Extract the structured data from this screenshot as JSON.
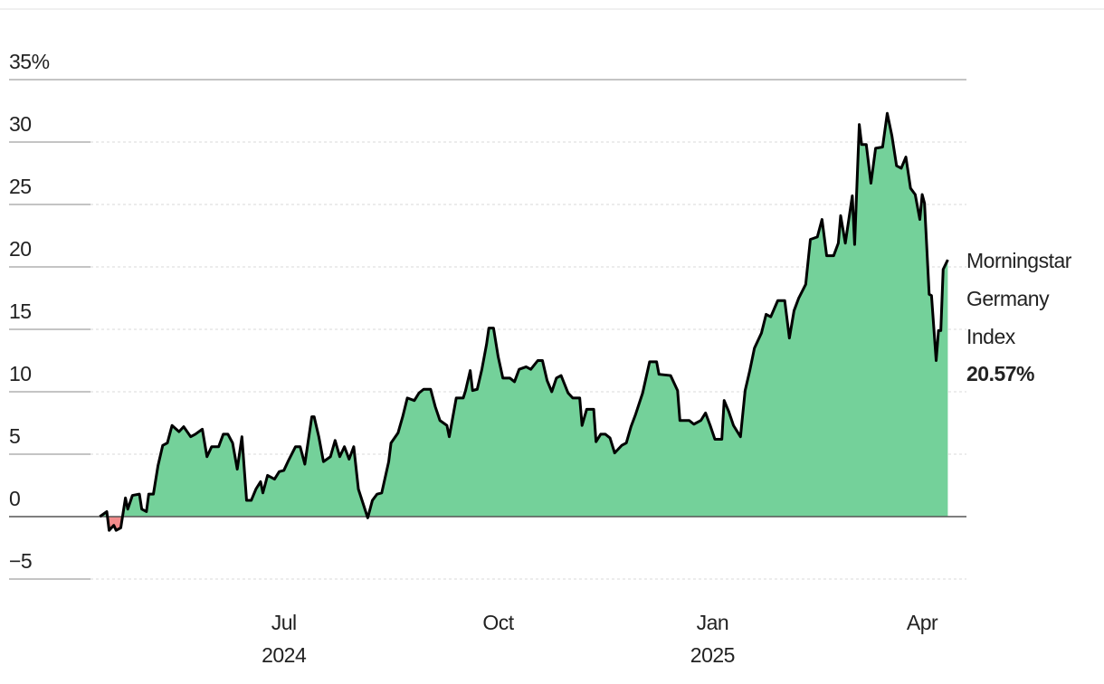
{
  "chart_data": {
    "type": "area",
    "xlim": [
      "2024-04-09",
      "2025-04-20"
    ],
    "xticks": [
      {
        "value": "2024-07-01",
        "label": "Jul\n2024"
      },
      {
        "value": "2024-10-01",
        "label": "Oct"
      },
      {
        "value": "2025-01-01",
        "label": "Jan\n2025"
      },
      {
        "value": "2025-04-01",
        "label": "Apr"
      }
    ],
    "ylim": [
      -5,
      35
    ],
    "yticks": [
      {
        "value": -5,
        "label": "−5"
      },
      0,
      5,
      10,
      15,
      20,
      25,
      30,
      {
        "value": 35,
        "label": "35%"
      }
    ],
    "grid": true,
    "x": [
      "2024-04-13",
      "2024-04-16",
      "2024-04-17",
      "2024-04-19",
      "2024-04-20",
      "2024-04-22",
      "2024-04-24",
      "2024-04-25",
      "2024-04-27",
      "2024-04-30",
      "2024-05-01",
      "2024-05-03",
      "2024-05-04",
      "2024-05-06",
      "2024-05-08",
      "2024-05-10",
      "2024-05-12",
      "2024-05-14",
      "2024-05-17",
      "2024-05-19",
      "2024-05-22",
      "2024-05-24",
      "2024-05-27",
      "2024-05-29",
      "2024-05-31",
      "2024-06-03",
      "2024-06-05",
      "2024-06-07",
      "2024-06-09",
      "2024-06-11",
      "2024-06-13",
      "2024-06-15",
      "2024-06-17",
      "2024-06-19",
      "2024-06-21",
      "2024-06-22",
      "2024-06-24",
      "2024-06-27",
      "2024-06-29",
      "2024-07-01",
      "2024-07-03",
      "2024-07-06",
      "2024-07-08",
      "2024-07-10",
      "2024-07-13",
      "2024-07-14",
      "2024-07-16",
      "2024-07-18",
      "2024-07-21",
      "2024-07-23",
      "2024-07-25",
      "2024-07-27",
      "2024-07-29",
      "2024-07-31",
      "2024-08-02",
      "2024-08-06",
      "2024-08-08",
      "2024-08-10",
      "2024-08-12",
      "2024-08-15",
      "2024-08-16",
      "2024-08-19",
      "2024-08-21",
      "2024-08-23",
      "2024-08-26",
      "2024-08-28",
      "2024-08-30",
      "2024-09-02",
      "2024-09-04",
      "2024-09-06",
      "2024-09-09",
      "2024-09-10",
      "2024-09-13",
      "2024-09-16",
      "2024-09-17",
      "2024-09-19",
      "2024-09-20",
      "2024-09-22",
      "2024-09-24",
      "2024-09-26",
      "2024-09-27",
      "2024-09-29",
      "2024-10-01",
      "2024-10-03",
      "2024-10-06",
      "2024-10-08",
      "2024-10-10",
      "2024-10-13",
      "2024-10-15",
      "2024-10-18",
      "2024-10-20",
      "2024-10-22",
      "2024-10-24",
      "2024-10-26",
      "2024-10-28",
      "2024-10-31",
      "2024-11-02",
      "2024-11-05",
      "2024-11-06",
      "2024-11-08",
      "2024-11-11",
      "2024-11-12",
      "2024-11-14",
      "2024-11-16",
      "2024-11-18",
      "2024-11-20",
      "2024-11-23",
      "2024-11-25",
      "2024-11-27",
      "2024-11-29",
      "2024-12-02",
      "2024-12-05",
      "2024-12-08",
      "2024-12-09",
      "2024-12-14",
      "2024-12-17",
      "2024-12-18",
      "2024-12-22",
      "2024-12-24",
      "2024-12-27",
      "2024-12-29",
      "2024-12-31",
      "2025-01-02",
      "2025-01-05",
      "2025-01-06",
      "2025-01-08",
      "2025-01-10",
      "2025-01-13",
      "2025-01-15",
      "2025-01-17",
      "2025-01-19",
      "2025-01-22",
      "2025-01-24",
      "2025-01-26",
      "2025-01-29",
      "2025-02-01",
      "2025-02-03",
      "2025-02-05",
      "2025-02-07",
      "2025-02-10",
      "2025-02-12",
      "2025-02-15",
      "2025-02-17",
      "2025-02-19",
      "2025-02-22",
      "2025-02-24",
      "2025-02-25",
      "2025-02-27",
      "2025-03-02",
      "2025-03-03",
      "2025-03-05",
      "2025-03-06",
      "2025-03-08",
      "2025-03-10",
      "2025-03-12",
      "2025-03-15",
      "2025-03-17",
      "2025-03-19",
      "2025-03-21",
      "2025-03-23",
      "2025-03-25",
      "2025-03-27",
      "2025-03-29",
      "2025-03-31",
      "2025-04-01",
      "2025-04-02",
      "2025-04-04",
      "2025-04-05",
      "2025-04-07",
      "2025-04-08",
      "2025-04-09",
      "2025-04-10",
      "2025-04-12"
    ],
    "series": [
      {
        "name": "Morningstar Germany Index",
        "color": "#74d19a",
        "negative_color": "#f28b8b",
        "line_color": "#000000",
        "values": [
          0,
          0.4,
          -1.1,
          -0.7,
          -1.1,
          -0.9,
          1.5,
          0.6,
          1.7,
          1.8,
          0.6,
          0.4,
          1.8,
          1.8,
          4.1,
          5.7,
          5.9,
          7.3,
          6.8,
          7.2,
          6.4,
          6.6,
          7.0,
          4.8,
          5.6,
          5.6,
          6.6,
          6.6,
          5.9,
          3.8,
          6.4,
          1.3,
          1.3,
          2.2,
          2.8,
          1.9,
          3.3,
          3.0,
          3.6,
          3.7,
          4.5,
          5.6,
          5.6,
          4.2,
          8.0,
          8.0,
          6.4,
          4.4,
          4.8,
          6.1,
          4.8,
          5.6,
          4.6,
          5.6,
          2.2,
          -0.1,
          1.3,
          1.8,
          1.9,
          4.4,
          5.9,
          6.7,
          8.0,
          9.5,
          9.3,
          9.9,
          10.2,
          10.2,
          8.8,
          7.7,
          7.3,
          6.4,
          9.5,
          9.5,
          10.1,
          11.7,
          10.1,
          10.2,
          11.8,
          13.8,
          15.1,
          15.1,
          12.8,
          11.1,
          11.1,
          10.8,
          11.8,
          12.0,
          11.8,
          12.5,
          12.5,
          10.9,
          10.0,
          11.1,
          11.3,
          9.9,
          9.5,
          9.5,
          7.3,
          8.6,
          8.6,
          6.0,
          6.6,
          6.6,
          6.3,
          5.1,
          5.7,
          5.9,
          7.2,
          8.2,
          9.9,
          12.4,
          12.4,
          11.4,
          11.3,
          10.1,
          7.7,
          7.7,
          7.4,
          7.7,
          8.3,
          7.3,
          6.2,
          6.2,
          9.3,
          8.4,
          7.3,
          6.4,
          10.1,
          11.7,
          13.5,
          14.7,
          16.2,
          16.0,
          17.3,
          17.3,
          14.3,
          16.5,
          17.5,
          18.6,
          22.2,
          22.4,
          23.8,
          20.9,
          20.9,
          21.9,
          24.1,
          21.9,
          25.7,
          21.8,
          31.4,
          29.8,
          29.8,
          26.7,
          29.5,
          29.6,
          32.3,
          30.5,
          28.1,
          27.9,
          28.8,
          26.3,
          25.8,
          23.8,
          25.8,
          25.1,
          17.8,
          17.7,
          12.5,
          14.9,
          14.9,
          19.8,
          20.57
        ],
        "value_labels": [
          null,
          null,
          null,
          null,
          null,
          null,
          null,
          null,
          null,
          null,
          null,
          null,
          null,
          null,
          null,
          null,
          null,
          null,
          null,
          null,
          null,
          null,
          null,
          null,
          null,
          null,
          null,
          null,
          null,
          null,
          null,
          null,
          null,
          null,
          null,
          null,
          null,
          null,
          null,
          null,
          null,
          null,
          null,
          null,
          null,
          null,
          null,
          null,
          null,
          null,
          null,
          null,
          null,
          null,
          null,
          null,
          null,
          null,
          null,
          null,
          null,
          null,
          null,
          null,
          null,
          null,
          null,
          null,
          null,
          null,
          null,
          null,
          null,
          null,
          null,
          null,
          null,
          null,
          null,
          null,
          null,
          null,
          null,
          null,
          null,
          null,
          null,
          null,
          null,
          null,
          null,
          null,
          null,
          null,
          null,
          null,
          null,
          null,
          null,
          null,
          null,
          null,
          null,
          null,
          null,
          null,
          null,
          null,
          null,
          null,
          null,
          null,
          null,
          null,
          null,
          null,
          null,
          null,
          null,
          null,
          null,
          null,
          null,
          null,
          null,
          null,
          null,
          null,
          null,
          null,
          null,
          null,
          null,
          null,
          null,
          null,
          null,
          null,
          null,
          null,
          null,
          null,
          null,
          null,
          null,
          null,
          null,
          null,
          null,
          null,
          null,
          null,
          null,
          null,
          null,
          null,
          null,
          null,
          null,
          null,
          null,
          null,
          null,
          null,
          null,
          null,
          null,
          null,
          null,
          null,
          null,
          null,
          "20.57%"
        ]
      }
    ]
  }
}
